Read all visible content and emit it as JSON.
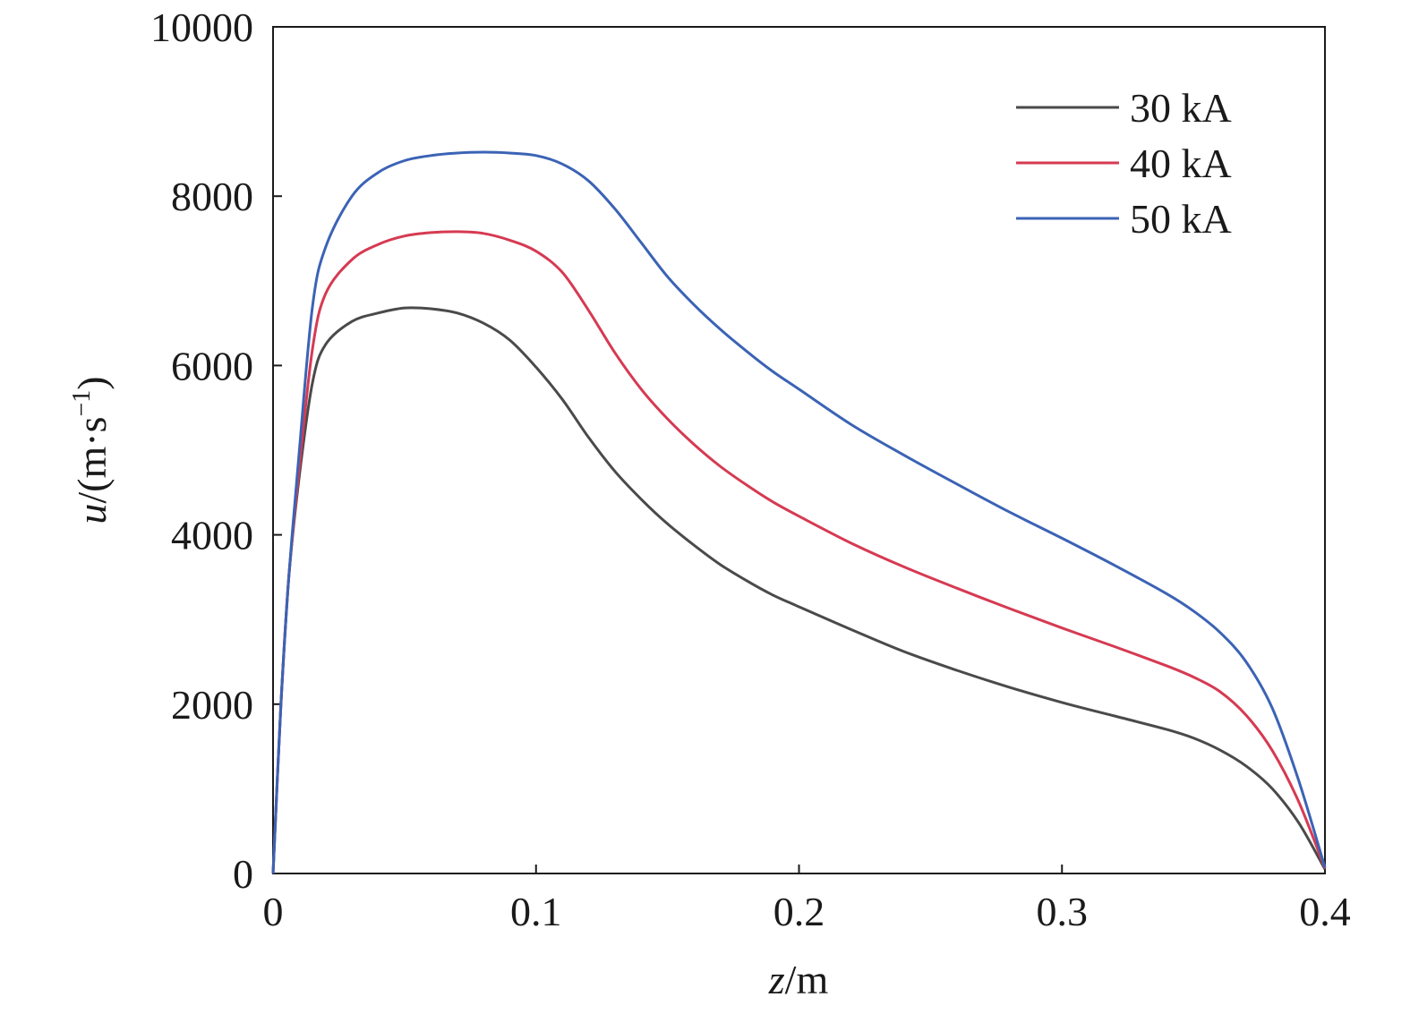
{
  "chart_data": {
    "type": "line",
    "title": "",
    "xlabel": {
      "symbol": "z",
      "unit": "/m"
    },
    "ylabel": {
      "symbol": "u",
      "unit_pre": "/(m·s",
      "unit_sup": "−1",
      "unit_post": ")"
    },
    "xlim": [
      0,
      0.4
    ],
    "ylim": [
      0,
      10000
    ],
    "xticks": [
      0,
      0.1,
      0.2,
      0.3,
      0.4
    ],
    "xtick_labels": [
      "0",
      "0.1",
      "0.2",
      "0.3",
      "0.4"
    ],
    "yticks": [
      0,
      2000,
      4000,
      6000,
      8000,
      10000
    ],
    "ytick_labels": [
      "0",
      "2000",
      "4000",
      "6000",
      "8000",
      "10000"
    ],
    "grid": false,
    "legend_position": "top-right",
    "series": [
      {
        "name": "30 kA",
        "color": "#4a4a4a",
        "points": [
          [
            0,
            0
          ],
          [
            0.003,
            2000
          ],
          [
            0.006,
            3500
          ],
          [
            0.01,
            4700
          ],
          [
            0.015,
            5800
          ],
          [
            0.02,
            6250
          ],
          [
            0.03,
            6520
          ],
          [
            0.04,
            6620
          ],
          [
            0.05,
            6680
          ],
          [
            0.06,
            6670
          ],
          [
            0.07,
            6620
          ],
          [
            0.08,
            6500
          ],
          [
            0.09,
            6300
          ],
          [
            0.1,
            5980
          ],
          [
            0.11,
            5600
          ],
          [
            0.12,
            5150
          ],
          [
            0.13,
            4750
          ],
          [
            0.14,
            4420
          ],
          [
            0.15,
            4130
          ],
          [
            0.16,
            3880
          ],
          [
            0.17,
            3650
          ],
          [
            0.18,
            3460
          ],
          [
            0.19,
            3290
          ],
          [
            0.2,
            3150
          ],
          [
            0.22,
            2880
          ],
          [
            0.24,
            2620
          ],
          [
            0.26,
            2400
          ],
          [
            0.28,
            2200
          ],
          [
            0.3,
            2020
          ],
          [
            0.32,
            1860
          ],
          [
            0.34,
            1700
          ],
          [
            0.35,
            1600
          ],
          [
            0.36,
            1460
          ],
          [
            0.37,
            1270
          ],
          [
            0.38,
            1000
          ],
          [
            0.39,
            600
          ],
          [
            0.4,
            50
          ]
        ]
      },
      {
        "name": "40 kA",
        "color": "#d63a52",
        "points": [
          [
            0,
            0
          ],
          [
            0.003,
            2000
          ],
          [
            0.006,
            3500
          ],
          [
            0.01,
            4800
          ],
          [
            0.015,
            6200
          ],
          [
            0.02,
            6850
          ],
          [
            0.03,
            7250
          ],
          [
            0.04,
            7430
          ],
          [
            0.05,
            7530
          ],
          [
            0.06,
            7570
          ],
          [
            0.07,
            7580
          ],
          [
            0.08,
            7560
          ],
          [
            0.09,
            7480
          ],
          [
            0.1,
            7350
          ],
          [
            0.11,
            7100
          ],
          [
            0.12,
            6650
          ],
          [
            0.13,
            6150
          ],
          [
            0.14,
            5720
          ],
          [
            0.15,
            5370
          ],
          [
            0.16,
            5070
          ],
          [
            0.17,
            4810
          ],
          [
            0.18,
            4590
          ],
          [
            0.19,
            4390
          ],
          [
            0.2,
            4220
          ],
          [
            0.22,
            3900
          ],
          [
            0.24,
            3620
          ],
          [
            0.26,
            3370
          ],
          [
            0.28,
            3130
          ],
          [
            0.3,
            2900
          ],
          [
            0.32,
            2680
          ],
          [
            0.34,
            2450
          ],
          [
            0.35,
            2320
          ],
          [
            0.36,
            2150
          ],
          [
            0.37,
            1870
          ],
          [
            0.38,
            1450
          ],
          [
            0.39,
            850
          ],
          [
            0.4,
            60
          ]
        ]
      },
      {
        "name": "50 kA",
        "color": "#3b63b5",
        "points": [
          [
            0,
            0
          ],
          [
            0.003,
            2000
          ],
          [
            0.006,
            3500
          ],
          [
            0.01,
            5000
          ],
          [
            0.015,
            6700
          ],
          [
            0.02,
            7400
          ],
          [
            0.03,
            8000
          ],
          [
            0.04,
            8280
          ],
          [
            0.05,
            8420
          ],
          [
            0.06,
            8480
          ],
          [
            0.07,
            8510
          ],
          [
            0.08,
            8520
          ],
          [
            0.09,
            8510
          ],
          [
            0.1,
            8480
          ],
          [
            0.11,
            8380
          ],
          [
            0.12,
            8180
          ],
          [
            0.13,
            7850
          ],
          [
            0.14,
            7450
          ],
          [
            0.15,
            7050
          ],
          [
            0.16,
            6720
          ],
          [
            0.17,
            6430
          ],
          [
            0.18,
            6170
          ],
          [
            0.19,
            5930
          ],
          [
            0.2,
            5720
          ],
          [
            0.22,
            5300
          ],
          [
            0.24,
            4940
          ],
          [
            0.26,
            4600
          ],
          [
            0.28,
            4270
          ],
          [
            0.3,
            3960
          ],
          [
            0.32,
            3640
          ],
          [
            0.34,
            3300
          ],
          [
            0.35,
            3100
          ],
          [
            0.36,
            2850
          ],
          [
            0.37,
            2500
          ],
          [
            0.38,
            1950
          ],
          [
            0.39,
            1100
          ],
          [
            0.4,
            70
          ]
        ]
      }
    ]
  }
}
